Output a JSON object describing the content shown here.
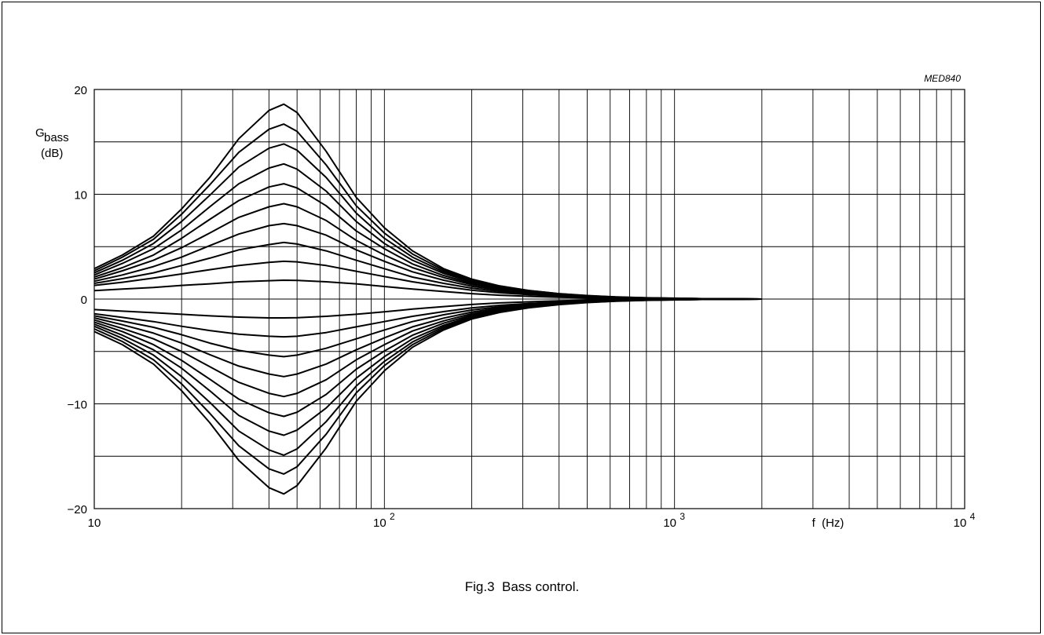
{
  "figure": {
    "code": "MED840",
    "caption": "Fig.3  Bass control."
  },
  "chart_data": {
    "type": "line",
    "title": "",
    "xlabel": "f  (Hz)",
    "ylabel_main": "G",
    "ylabel_sub": "bass",
    "ylabel_unit": "(dB)",
    "xscale": "log",
    "xlim": [
      10,
      10000
    ],
    "ylim": [
      -20,
      20
    ],
    "grid": true,
    "y_ticks": [
      {
        "value": 20,
        "label": "20"
      },
      {
        "value": 10,
        "label": "10"
      },
      {
        "value": 0,
        "label": "0"
      },
      {
        "value": -10,
        "label": "−10"
      },
      {
        "value": -20,
        "label": "−20"
      }
    ],
    "x_ticks": [
      {
        "value": 10,
        "base": "10",
        "exp": ""
      },
      {
        "value": 100,
        "base": "10",
        "exp": "2"
      },
      {
        "value": 1000,
        "base": "10",
        "exp": "3"
      },
      {
        "value": 10000,
        "base": "10",
        "exp": "4"
      }
    ],
    "x": [
      10,
      12.5,
      16,
      20,
      25,
      31.5,
      40,
      45,
      50,
      63,
      80,
      100,
      125,
      160,
      200,
      250,
      315,
      400,
      500,
      630,
      800,
      1000,
      1250,
      1600,
      2000
    ],
    "series": [
      {
        "peak": 18.6,
        "values": [
          2.9,
          4.2,
          6.0,
          8.6,
          11.6,
          15.3,
          18.0,
          18.6,
          17.8,
          14.1,
          9.7,
          6.8,
          4.6,
          2.9,
          1.9,
          1.25,
          0.82,
          0.52,
          0.34,
          0.2,
          0.12,
          0.08,
          0.04,
          0.02,
          0.0
        ]
      },
      {
        "peak": 16.7,
        "values": [
          2.7,
          4.0,
          5.7,
          8.1,
          10.9,
          14.0,
          16.2,
          16.7,
          16.0,
          12.8,
          8.9,
          6.3,
          4.3,
          2.75,
          1.8,
          1.2,
          0.8,
          0.5,
          0.32,
          0.19,
          0.11,
          0.07,
          0.04,
          0.02,
          0.0
        ]
      },
      {
        "peak": 14.8,
        "values": [
          2.5,
          3.7,
          5.3,
          7.4,
          9.9,
          12.6,
          14.4,
          14.8,
          14.2,
          11.6,
          8.2,
          5.8,
          4.0,
          2.6,
          1.7,
          1.15,
          0.76,
          0.48,
          0.31,
          0.18,
          0.11,
          0.07,
          0.04,
          0.02,
          0.0
        ]
      },
      {
        "peak": 12.9,
        "values": [
          2.3,
          3.4,
          4.8,
          6.6,
          8.8,
          11.0,
          12.5,
          12.9,
          12.4,
          10.3,
          7.4,
          5.3,
          3.7,
          2.45,
          1.62,
          1.1,
          0.72,
          0.46,
          0.3,
          0.17,
          0.1,
          0.06,
          0.03,
          0.02,
          0.0
        ]
      },
      {
        "peak": 11.0,
        "values": [
          2.1,
          3.0,
          4.2,
          5.8,
          7.6,
          9.4,
          10.7,
          11.0,
          10.6,
          8.9,
          6.5,
          4.8,
          3.35,
          2.25,
          1.5,
          1.02,
          0.68,
          0.43,
          0.28,
          0.16,
          0.1,
          0.06,
          0.03,
          0.02,
          0.0
        ]
      },
      {
        "peak": 9.1,
        "values": [
          1.9,
          2.7,
          3.7,
          4.9,
          6.3,
          7.8,
          8.8,
          9.1,
          8.8,
          7.5,
          5.6,
          4.2,
          3.0,
          2.05,
          1.38,
          0.95,
          0.63,
          0.41,
          0.26,
          0.15,
          0.09,
          0.05,
          0.03,
          0.01,
          0.0
        ]
      },
      {
        "peak": 7.2,
        "values": [
          1.7,
          2.3,
          3.1,
          4.0,
          5.1,
          6.2,
          7.0,
          7.2,
          7.0,
          6.1,
          4.7,
          3.6,
          2.6,
          1.8,
          1.22,
          0.85,
          0.57,
          0.37,
          0.24,
          0.14,
          0.08,
          0.05,
          0.03,
          0.01,
          0.0
        ]
      },
      {
        "peak": 5.4,
        "values": [
          1.5,
          1.95,
          2.5,
          3.2,
          3.9,
          4.7,
          5.2,
          5.4,
          5.25,
          4.6,
          3.7,
          2.9,
          2.1,
          1.5,
          1.04,
          0.73,
          0.5,
          0.33,
          0.21,
          0.12,
          0.07,
          0.04,
          0.02,
          0.01,
          0.0
        ]
      },
      {
        "peak": 3.6,
        "values": [
          1.3,
          1.6,
          2.0,
          2.4,
          2.8,
          3.2,
          3.5,
          3.6,
          3.55,
          3.2,
          2.65,
          2.15,
          1.65,
          1.2,
          0.85,
          0.6,
          0.42,
          0.28,
          0.18,
          0.1,
          0.06,
          0.04,
          0.02,
          0.01,
          0.0
        ]
      },
      {
        "peak": 1.8,
        "values": [
          0.8,
          0.95,
          1.1,
          1.3,
          1.45,
          1.65,
          1.75,
          1.8,
          1.78,
          1.65,
          1.45,
          1.2,
          0.95,
          0.72,
          0.52,
          0.37,
          0.26,
          0.17,
          0.11,
          0.06,
          0.04,
          0.02,
          0.01,
          0.01,
          0.0
        ]
      },
      {
        "peak": -1.8,
        "values": [
          -1.0,
          -1.15,
          -1.3,
          -1.45,
          -1.6,
          -1.72,
          -1.8,
          -1.8,
          -1.78,
          -1.65,
          -1.45,
          -1.22,
          -0.96,
          -0.72,
          -0.52,
          -0.37,
          -0.26,
          -0.17,
          -0.11,
          -0.06,
          -0.04,
          -0.02,
          -0.01,
          -0.01,
          0.0
        ]
      },
      {
        "peak": -3.6,
        "values": [
          -1.4,
          -1.75,
          -2.15,
          -2.6,
          -3.0,
          -3.35,
          -3.55,
          -3.6,
          -3.55,
          -3.2,
          -2.65,
          -2.15,
          -1.65,
          -1.2,
          -0.85,
          -0.6,
          -0.42,
          -0.28,
          -0.18,
          -0.1,
          -0.06,
          -0.04,
          -0.02,
          -0.01,
          0.0
        ]
      },
      {
        "peak": -5.5,
        "values": [
          -1.6,
          -2.1,
          -2.7,
          -3.4,
          -4.2,
          -4.9,
          -5.35,
          -5.5,
          -5.35,
          -4.7,
          -3.8,
          -2.95,
          -2.15,
          -1.5,
          -1.05,
          -0.74,
          -0.5,
          -0.33,
          -0.21,
          -0.12,
          -0.07,
          -0.04,
          -0.02,
          -0.01,
          0.0
        ]
      },
      {
        "peak": -7.4,
        "values": [
          -1.8,
          -2.45,
          -3.25,
          -4.2,
          -5.3,
          -6.4,
          -7.15,
          -7.4,
          -7.15,
          -6.2,
          -4.85,
          -3.7,
          -2.65,
          -1.82,
          -1.24,
          -0.86,
          -0.58,
          -0.37,
          -0.24,
          -0.14,
          -0.08,
          -0.05,
          -0.03,
          -0.01,
          0.0
        ]
      },
      {
        "peak": -9.3,
        "values": [
          -2.0,
          -2.8,
          -3.8,
          -5.0,
          -6.45,
          -7.95,
          -9.0,
          -9.3,
          -9.0,
          -7.7,
          -5.8,
          -4.35,
          -3.05,
          -2.08,
          -1.4,
          -0.96,
          -0.64,
          -0.41,
          -0.26,
          -0.15,
          -0.09,
          -0.05,
          -0.03,
          -0.01,
          0.0
        ]
      },
      {
        "peak": -11.2,
        "values": [
          -2.2,
          -3.1,
          -4.35,
          -5.85,
          -7.65,
          -9.55,
          -10.85,
          -11.2,
          -10.8,
          -9.1,
          -6.7,
          -4.95,
          -3.45,
          -2.3,
          -1.53,
          -1.04,
          -0.69,
          -0.44,
          -0.28,
          -0.16,
          -0.1,
          -0.06,
          -0.03,
          -0.02,
          0.0
        ]
      },
      {
        "peak": -13.0,
        "values": [
          -2.4,
          -3.45,
          -4.85,
          -6.6,
          -8.75,
          -11.1,
          -12.6,
          -13.0,
          -12.5,
          -10.4,
          -7.55,
          -5.5,
          -3.8,
          -2.5,
          -1.65,
          -1.12,
          -0.73,
          -0.47,
          -0.3,
          -0.17,
          -0.1,
          -0.06,
          -0.03,
          -0.02,
          0.0
        ]
      },
      {
        "peak": -14.9,
        "values": [
          -2.6,
          -3.75,
          -5.35,
          -7.4,
          -9.85,
          -12.6,
          -14.4,
          -14.9,
          -14.3,
          -11.7,
          -8.3,
          -5.95,
          -4.1,
          -2.65,
          -1.75,
          -1.18,
          -0.77,
          -0.49,
          -0.31,
          -0.18,
          -0.11,
          -0.07,
          -0.04,
          -0.02,
          0.0
        ]
      },
      {
        "peak": -16.7,
        "values": [
          -2.85,
          -4.05,
          -5.8,
          -8.1,
          -10.9,
          -14.0,
          -16.2,
          -16.7,
          -16.0,
          -12.9,
          -8.95,
          -6.35,
          -4.35,
          -2.8,
          -1.82,
          -1.22,
          -0.8,
          -0.51,
          -0.32,
          -0.19,
          -0.11,
          -0.07,
          -0.04,
          -0.02,
          0.0
        ]
      },
      {
        "peak": -18.6,
        "values": [
          -3.1,
          -4.35,
          -6.2,
          -8.75,
          -11.8,
          -15.4,
          -18.0,
          -18.6,
          -17.8,
          -14.2,
          -9.75,
          -6.85,
          -4.6,
          -2.95,
          -1.9,
          -1.27,
          -0.83,
          -0.53,
          -0.34,
          -0.2,
          -0.12,
          -0.08,
          -0.04,
          -0.02,
          0.0
        ]
      }
    ]
  }
}
